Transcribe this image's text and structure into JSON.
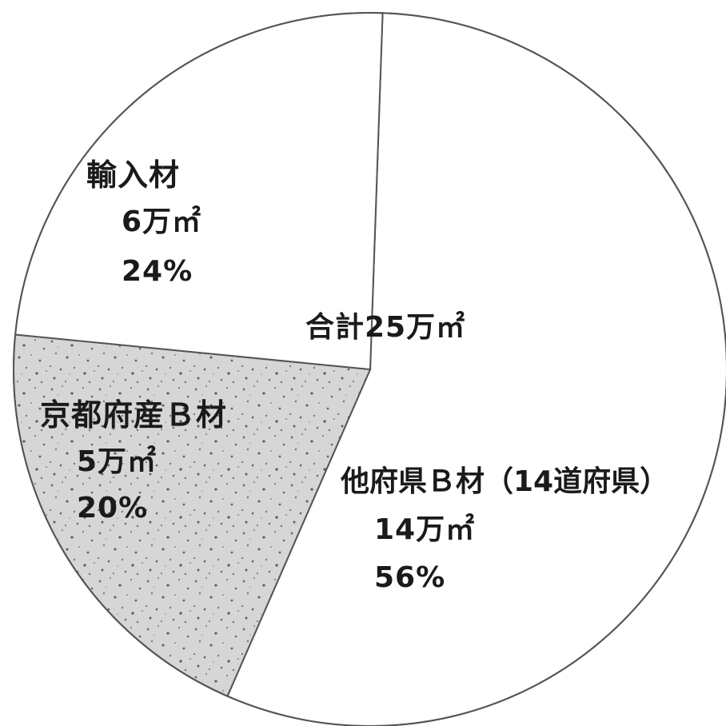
{
  "chart_data": {
    "type": "pie",
    "title": "",
    "center_label": "合計25万㎡",
    "total": 25,
    "unit": "万㎡",
    "slices": [
      {
        "name": "他府県Ｂ材（14道府県）",
        "label": "他府県Ｂ材（14道府県）",
        "value_label": "14万㎡",
        "percent_label": "56%",
        "value": 14,
        "percent": 56,
        "fill": "#ffffff",
        "pattern": "none"
      },
      {
        "name": "京都府産Ｂ材",
        "label": "京都府産Ｂ材",
        "value_label": "5万㎡",
        "percent_label": "20%",
        "value": 5,
        "percent": 20,
        "fill": "#dcdcdc",
        "pattern": "speckle"
      },
      {
        "name": "輸入材",
        "label": "輸入材",
        "value_label": "6万㎡",
        "percent_label": "24%",
        "value": 6,
        "percent": 24,
        "fill": "#ffffff",
        "pattern": "none"
      }
    ],
    "start_angle_deg": 2,
    "direction": "clockwise",
    "border_color": "#555555",
    "legend": "none"
  }
}
